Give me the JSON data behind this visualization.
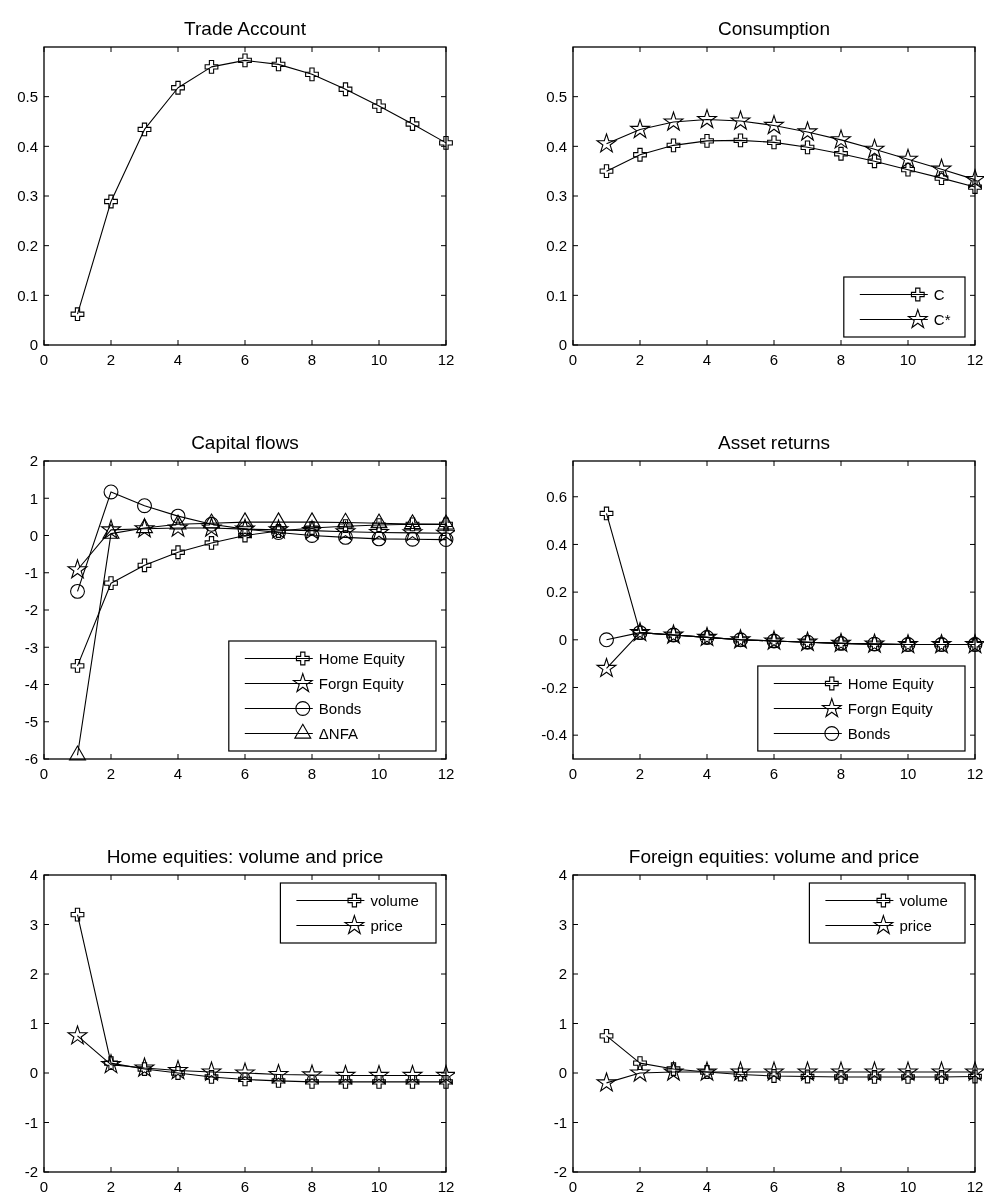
{
  "chart_data": [
    {
      "type": "line",
      "title": "Trade Account",
      "x": [
        1,
        2,
        3,
        4,
        5,
        6,
        7,
        8,
        9,
        10,
        11,
        12
      ],
      "xlim": [
        0,
        12
      ],
      "xticks": [
        0,
        2,
        4,
        6,
        8,
        10,
        12
      ],
      "ylim": [
        0,
        0.6
      ],
      "yticks": [
        0,
        0.1,
        0.2,
        0.3,
        0.4,
        0.5
      ],
      "series": [
        {
          "color": "#000000",
          "marker": "cross",
          "values": [
            0.062,
            0.289,
            0.434,
            0.518,
            0.56,
            0.573,
            0.565,
            0.545,
            0.515,
            0.481,
            0.445,
            0.407
          ]
        }
      ]
    },
    {
      "type": "line",
      "title": "Consumption",
      "x": [
        1,
        2,
        3,
        4,
        5,
        6,
        7,
        8,
        9,
        10,
        11,
        12
      ],
      "xlim": [
        0,
        12
      ],
      "xticks": [
        0,
        2,
        4,
        6,
        8,
        10,
        12
      ],
      "ylim": [
        0,
        0.6
      ],
      "yticks": [
        0,
        0.1,
        0.2,
        0.3,
        0.4,
        0.5
      ],
      "legend": "bottom right",
      "series": [
        {
          "name": "C",
          "color": "#000000",
          "marker": "cross",
          "values": [
            0.35,
            0.383,
            0.402,
            0.411,
            0.412,
            0.408,
            0.398,
            0.385,
            0.37,
            0.353,
            0.336,
            0.318
          ]
        },
        {
          "name": "C*",
          "color": "#000000",
          "marker": "star",
          "values": [
            0.405,
            0.434,
            0.449,
            0.454,
            0.451,
            0.442,
            0.429,
            0.413,
            0.394,
            0.374,
            0.354,
            0.333
          ]
        }
      ]
    },
    {
      "type": "line",
      "title": "Capital flows",
      "x": [
        1,
        2,
        3,
        4,
        5,
        6,
        7,
        8,
        9,
        10,
        11,
        12
      ],
      "xlim": [
        0,
        12
      ],
      "xticks": [
        0,
        2,
        4,
        6,
        8,
        10,
        12
      ],
      "ylim": [
        -6,
        2
      ],
      "yticks": [
        -6,
        -5,
        -4,
        -3,
        -2,
        -1,
        0,
        1,
        2
      ],
      "legend": "bottom right",
      "series": [
        {
          "name": "Home Equity",
          "color": "#000000",
          "marker": "cross",
          "values": [
            -3.5,
            -1.28,
            -0.8,
            -0.45,
            -0.2,
            0,
            0.12,
            0.2,
            0.25,
            0.28,
            0.3,
            0.3
          ]
        },
        {
          "name": "Forgn Equity",
          "color": "#000000",
          "marker": "star",
          "values": [
            -0.92,
            0.15,
            0.18,
            0.2,
            0.2,
            0.17,
            0.15,
            0.13,
            0.1,
            0.08,
            0.07,
            0.06
          ]
        },
        {
          "name": "Bonds",
          "color": "#000000",
          "marker": "circle",
          "values": [
            -1.5,
            1.17,
            0.8,
            0.52,
            0.3,
            0.17,
            0.08,
            0,
            -0.05,
            -0.09,
            -0.1,
            -0.11
          ]
        },
        {
          "name": "ΔNFA",
          "color": "#000000",
          "marker": "triangle",
          "values": [
            -5.9,
            0.05,
            0.2,
            0.3,
            0.33,
            0.36,
            0.36,
            0.36,
            0.35,
            0.33,
            0.31,
            0.3
          ]
        }
      ]
    },
    {
      "type": "line",
      "title": "Asset returns",
      "x": [
        1,
        2,
        3,
        4,
        5,
        6,
        7,
        8,
        9,
        10,
        11,
        12
      ],
      "xlim": [
        0,
        12
      ],
      "xticks": [
        0,
        2,
        4,
        6,
        8,
        10,
        12
      ],
      "ylim": [
        -0.5,
        0.75
      ],
      "yticks": [
        -0.4,
        -0.2,
        0,
        0.2,
        0.4,
        0.6
      ],
      "legend": "bottom right",
      "series": [
        {
          "name": "Home Equity",
          "color": "#000000",
          "marker": "cross",
          "values": [
            0.53,
            0.03,
            0.02,
            0.01,
            0,
            -0.005,
            -0.01,
            -0.015,
            -0.018,
            -0.02,
            -0.02,
            -0.02
          ]
        },
        {
          "name": "Forgn Equity",
          "color": "#000000",
          "marker": "star",
          "values": [
            -0.12,
            0.03,
            0.02,
            0.01,
            0,
            -0.005,
            -0.01,
            -0.015,
            -0.018,
            -0.02,
            -0.02,
            -0.02
          ]
        },
        {
          "name": "Bonds",
          "color": "#000000",
          "marker": "circle",
          "values": [
            0,
            0.03,
            0.02,
            0.01,
            0,
            -0.005,
            -0.01,
            -0.015,
            -0.018,
            -0.02,
            -0.02,
            -0.02
          ]
        }
      ]
    },
    {
      "type": "line",
      "title": "Home equities: volume and price",
      "x": [
        1,
        2,
        3,
        4,
        5,
        6,
        7,
        8,
        9,
        10,
        11,
        12
      ],
      "xlim": [
        0,
        12
      ],
      "xticks": [
        0,
        2,
        4,
        6,
        8,
        10,
        12
      ],
      "ylim": [
        -2,
        4
      ],
      "yticks": [
        -2,
        -1,
        0,
        1,
        2,
        3,
        4
      ],
      "legend": "top right",
      "series": [
        {
          "name": "volume",
          "color": "#000000",
          "marker": "cross",
          "values": [
            3.2,
            0.2,
            0.08,
            0,
            -0.08,
            -0.13,
            -0.16,
            -0.18,
            -0.18,
            -0.18,
            -0.18,
            -0.18
          ]
        },
        {
          "name": "price",
          "color": "#000000",
          "marker": "star",
          "values": [
            0.75,
            0.17,
            0.1,
            0.05,
            0.02,
            0,
            -0.03,
            -0.04,
            -0.05,
            -0.05,
            -0.05,
            -0.05
          ]
        }
      ]
    },
    {
      "type": "line",
      "title": "Foreign equities: volume and price",
      "x": [
        1,
        2,
        3,
        4,
        5,
        6,
        7,
        8,
        9,
        10,
        11,
        12
      ],
      "xlim": [
        0,
        12
      ],
      "xticks": [
        0,
        2,
        4,
        6,
        8,
        10,
        12
      ],
      "ylim": [
        -2,
        4
      ],
      "yticks": [
        -2,
        -1,
        0,
        1,
        2,
        3,
        4
      ],
      "legend": "top right",
      "series": [
        {
          "name": "volume",
          "color": "#000000",
          "marker": "cross",
          "values": [
            0.75,
            0.2,
            0.08,
            0.02,
            -0.03,
            -0.06,
            -0.07,
            -0.08,
            -0.08,
            -0.08,
            -0.08,
            -0.07
          ]
        },
        {
          "name": "price",
          "color": "#000000",
          "marker": "star",
          "values": [
            -0.2,
            0,
            0.02,
            0.02,
            0.02,
            0.02,
            0.02,
            0.02,
            0.02,
            0.02,
            0.02,
            0.02
          ]
        }
      ]
    }
  ]
}
